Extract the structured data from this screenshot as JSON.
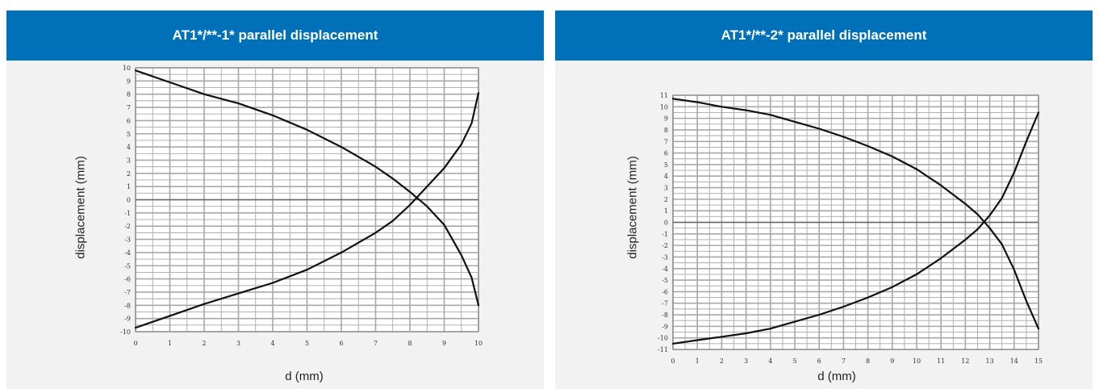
{
  "colors": {
    "header_bg": "#0071b9",
    "header_text": "#ffffff",
    "panel_bg": "#f2f2f2",
    "plot_bg": "#ffffff",
    "grid": "#a8a8a8",
    "curve": "#111111"
  },
  "chart_data": [
    {
      "type": "line",
      "title": "AT1*/**-1* parallel displacement",
      "xlabel": "d (mm)",
      "ylabel": "displacement (mm)",
      "xlim": [
        0,
        10
      ],
      "ylim": [
        -10,
        10
      ],
      "xticks": [
        0,
        1,
        2,
        3,
        4,
        5,
        6,
        7,
        8,
        9,
        10
      ],
      "yticks": [
        -10,
        -9,
        -8,
        -7,
        -6,
        -5,
        -4,
        -3,
        -2,
        -1,
        0,
        1,
        2,
        3,
        4,
        5,
        6,
        7,
        8,
        9,
        10
      ],
      "x_minor_step": 0.5,
      "y_minor_step": 0.5,
      "grid": true,
      "series": [
        {
          "x": [
            0,
            1,
            2,
            3,
            4,
            5,
            6,
            7,
            7.5,
            8,
            8.5,
            9,
            9.5,
            9.8,
            10
          ],
          "y": [
            9.8,
            8.9,
            8.0,
            7.3,
            6.4,
            5.3,
            4.0,
            2.5,
            1.6,
            0.6,
            -0.5,
            -1.9,
            -4.2,
            -5.9,
            -8.0
          ]
        },
        {
          "x": [
            0,
            1,
            2,
            3,
            4,
            5,
            6,
            7,
            7.5,
            8,
            8.5,
            9,
            9.5,
            9.8,
            10
          ],
          "y": [
            -9.7,
            -8.8,
            -7.9,
            -7.1,
            -6.3,
            -5.3,
            -4.0,
            -2.5,
            -1.6,
            -0.4,
            1.0,
            2.4,
            4.2,
            5.8,
            8.1
          ]
        }
      ]
    },
    {
      "type": "line",
      "title": "AT1*/**-2* parallel displacement",
      "xlabel": "d (mm)",
      "ylabel": "displacement (mm)",
      "xlim": [
        0,
        15
      ],
      "ylim": [
        -11,
        11
      ],
      "xticks": [
        0,
        1,
        2,
        3,
        4,
        5,
        6,
        7,
        8,
        9,
        10,
        11,
        12,
        13,
        14,
        15
      ],
      "yticks": [
        -11,
        -10,
        -9,
        -8,
        -7,
        -6,
        -5,
        -4,
        -3,
        -2,
        -1,
        0,
        1,
        2,
        3,
        4,
        5,
        6,
        7,
        8,
        9,
        10,
        11
      ],
      "x_minor_step": 0.5,
      "y_minor_step": 0.5,
      "grid": true,
      "series": [
        {
          "x": [
            0,
            1,
            2,
            3,
            4,
            5,
            6,
            7,
            8,
            9,
            10,
            11,
            12,
            12.5,
            13,
            13.5,
            14,
            14.5,
            15
          ],
          "y": [
            10.7,
            10.4,
            10.0,
            9.7,
            9.3,
            8.7,
            8.1,
            7.4,
            6.6,
            5.7,
            4.6,
            3.2,
            1.6,
            0.7,
            -0.5,
            -1.9,
            -4.1,
            -6.8,
            -9.2
          ]
        },
        {
          "x": [
            0,
            1,
            2,
            3,
            4,
            5,
            6,
            7,
            8,
            9,
            10,
            11,
            12,
            12.5,
            13,
            13.5,
            14,
            14.5,
            15
          ],
          "y": [
            -10.5,
            -10.2,
            -9.9,
            -9.6,
            -9.2,
            -8.6,
            -8.0,
            -7.3,
            -6.5,
            -5.6,
            -4.5,
            -3.1,
            -1.5,
            -0.6,
            0.6,
            2.1,
            4.3,
            7.0,
            9.5
          ]
        }
      ]
    }
  ]
}
